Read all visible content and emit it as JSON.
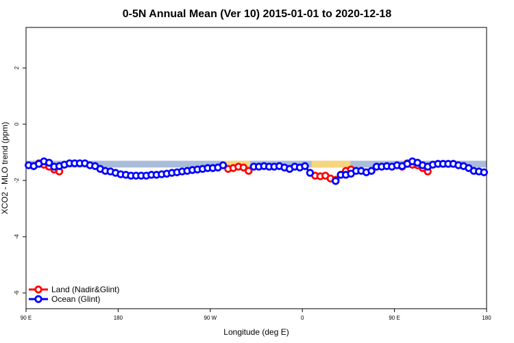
{
  "chart_data": {
    "type": "line",
    "title": "0-5N Annual Mean (Ver 10)   2015-01-01 to 2020-12-18",
    "xlabel": "Longitude (deg E)",
    "ylabel": "XCO2 - MLO trend (ppm)",
    "xlim": [
      90,
      540
    ],
    "ylim": [
      -6.56,
      3.44
    ],
    "xticks": [
      {
        "value": 90,
        "label": "90 E"
      },
      180,
      {
        "value": 270,
        "label": "90 W"
      },
      {
        "value": 360,
        "label": "0"
      },
      {
        "value": 450,
        "label": "90 E"
      },
      {
        "value": 540,
        "label": "180"
      }
    ],
    "yticks": [
      -6,
      -4,
      -2,
      0,
      2
    ],
    "legend": "bottom-left",
    "bands": [
      {
        "xlim": [
          90,
          540
        ],
        "ylim": [
          -1.54,
          -1.3
        ],
        "color": "#a9bcd9"
      },
      {
        "xlim": [
          282,
          309
        ],
        "ylim": [
          -1.54,
          -1.3
        ],
        "color": "#f7d57f"
      },
      {
        "xlim": [
          369,
          407
        ],
        "ylim": [
          -1.54,
          -1.3
        ],
        "color": "#f7d57f"
      },
      {
        "xlim": [
          464,
          474
        ],
        "ylim": [
          -1.54,
          -1.3
        ],
        "color": "#f7d57f"
      }
    ],
    "x": [
      92.5,
      97.5,
      102.5,
      107.5,
      112.5,
      117.5,
      122.5,
      127.5,
      132.5,
      137.5,
      142.5,
      147.5,
      152.5,
      157.5,
      162.5,
      167.5,
      172.5,
      177.5,
      182.5,
      187.5,
      192.5,
      197.5,
      202.5,
      207.5,
      212.5,
      217.5,
      222.5,
      227.5,
      232.5,
      237.5,
      242.5,
      247.5,
      252.5,
      257.5,
      262.5,
      267.5,
      272.5,
      277.5,
      282.5,
      287.5,
      292.5,
      297.5,
      302.5,
      307.5,
      312.5,
      317.5,
      322.5,
      327.5,
      332.5,
      337.5,
      342.5,
      347.5,
      352.5,
      357.5,
      362.5,
      367.5,
      372.5,
      377.5,
      382.5,
      387.5,
      392.5,
      397.5,
      402.5,
      407.5,
      412.5,
      417.5,
      422.5,
      427.5,
      432.5,
      437.5,
      442.5,
      447.5,
      452.5,
      457.5,
      462.5,
      467.5,
      472.5,
      477.5,
      482.5,
      487.5,
      492.5,
      497.5,
      502.5,
      507.5,
      512.5,
      517.5,
      522.5,
      527.5,
      532.5,
      537.5
    ],
    "series": [
      {
        "name": "Land (Nadir&Glint)",
        "color": "#ff0000",
        "values": [
          null,
          -1.49,
          -1.39,
          -1.44,
          -1.51,
          -1.61,
          -1.68,
          null,
          null,
          null,
          null,
          null,
          null,
          null,
          null,
          null,
          null,
          null,
          null,
          null,
          null,
          null,
          null,
          null,
          null,
          null,
          null,
          null,
          null,
          null,
          null,
          null,
          null,
          null,
          null,
          null,
          null,
          null,
          null,
          -1.59,
          -1.56,
          -1.51,
          -1.54,
          -1.66,
          null,
          null,
          null,
          null,
          null,
          null,
          null,
          null,
          null,
          null,
          null,
          null,
          -1.83,
          -1.85,
          -1.83,
          -1.93,
          -1.98,
          -1.8,
          -1.66,
          -1.61,
          null,
          null,
          null,
          null,
          null,
          null,
          null,
          null,
          null,
          -1.51,
          -1.39,
          -1.44,
          -1.46,
          -1.56,
          -1.68,
          null,
          null,
          null,
          null,
          null,
          null,
          null,
          null,
          null,
          null,
          null
        ]
      },
      {
        "name": "Ocean (Glint)",
        "color": "#0000ff",
        "values": [
          -1.46,
          -1.49,
          -1.41,
          -1.32,
          -1.37,
          -1.51,
          -1.49,
          -1.44,
          -1.39,
          -1.39,
          -1.39,
          -1.39,
          -1.46,
          -1.49,
          -1.59,
          -1.66,
          -1.68,
          -1.73,
          -1.78,
          -1.8,
          -1.83,
          -1.83,
          -1.83,
          -1.83,
          -1.8,
          -1.8,
          -1.78,
          -1.76,
          -1.73,
          -1.71,
          -1.68,
          -1.66,
          -1.63,
          -1.61,
          -1.59,
          -1.56,
          -1.56,
          -1.54,
          -1.46,
          null,
          null,
          null,
          null,
          null,
          -1.51,
          -1.51,
          -1.49,
          -1.51,
          -1.51,
          -1.49,
          -1.54,
          -1.59,
          -1.51,
          -1.54,
          -1.49,
          -1.73,
          null,
          null,
          null,
          null,
          -2.02,
          -1.8,
          -1.8,
          -1.76,
          -1.66,
          -1.66,
          -1.71,
          -1.66,
          -1.51,
          -1.51,
          -1.49,
          -1.51,
          -1.46,
          -1.49,
          -1.41,
          -1.32,
          -1.37,
          -1.46,
          -1.51,
          -1.44,
          -1.41,
          -1.41,
          -1.41,
          -1.41,
          -1.46,
          -1.49,
          -1.56,
          -1.66,
          -1.68,
          -1.71
        ]
      }
    ]
  }
}
